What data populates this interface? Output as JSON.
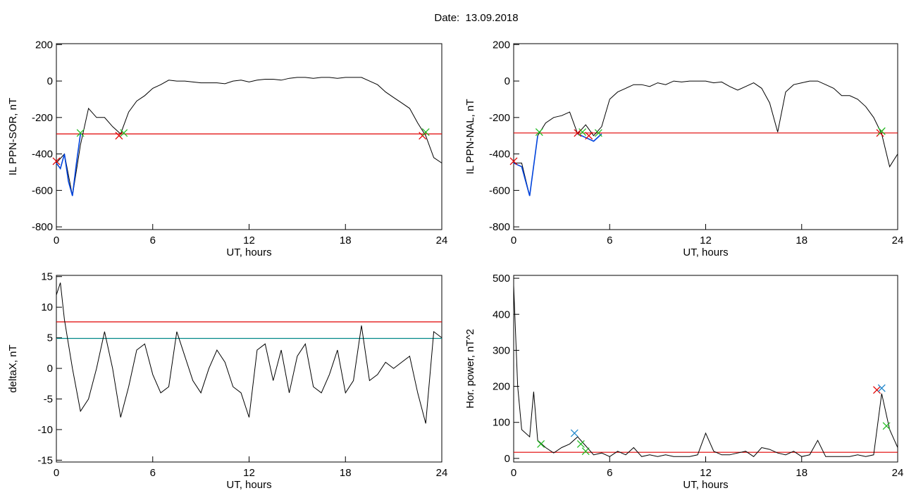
{
  "title": "Date:  13.09.2018",
  "chart_data": [
    {
      "type": "line",
      "xlabel": "UT, hours",
      "ylabel": "IL PPN-SOR, nT",
      "xlim": [
        0,
        24
      ],
      "xticks": [
        0,
        6,
        12,
        18,
        24
      ],
      "ylim": [
        -815,
        205
      ],
      "yticks": [
        200,
        0,
        -200,
        -400,
        -600,
        -800
      ],
      "series": [
        {
          "color": "#000000",
          "x": [
            0,
            0.5,
            1,
            1.5,
            2,
            2.5,
            3,
            3.5,
            4,
            4.5,
            5,
            5.5,
            6,
            6.5,
            7,
            7.5,
            8,
            8.5,
            9,
            9.5,
            10,
            10.5,
            11,
            11.5,
            12,
            12.5,
            13,
            13.5,
            14,
            14.5,
            15,
            15.5,
            16,
            16.5,
            17,
            17.5,
            18,
            18.5,
            19,
            19.5,
            20,
            20.5,
            21,
            21.5,
            22,
            22.5,
            23,
            23.5,
            24
          ],
          "values": [
            -450,
            -400,
            -630,
            -350,
            -150,
            -200,
            -200,
            -250,
            -290,
            -170,
            -110,
            -80,
            -40,
            -20,
            5,
            0,
            0,
            -5,
            -10,
            -10,
            -10,
            -15,
            0,
            5,
            -5,
            5,
            10,
            10,
            5,
            15,
            20,
            20,
            15,
            20,
            20,
            15,
            20,
            20,
            20,
            0,
            -20,
            -60,
            -90,
            -120,
            -150,
            -230,
            -300,
            -420,
            -450
          ]
        },
        {
          "color": "#0044dd",
          "x": [
            0,
            0.25,
            0.5,
            0.75,
            1,
            1.25,
            1.5
          ],
          "values": [
            -450,
            -480,
            -400,
            -550,
            -630,
            -450,
            -290
          ]
        }
      ],
      "hlines": [
        {
          "value": -290,
          "color": "#e00000"
        }
      ],
      "markers": [
        {
          "color": "#e00000",
          "x": [
            0,
            3.9,
            22.8
          ],
          "values": [
            -440,
            -300,
            -300
          ]
        },
        {
          "color": "#22bb22",
          "x": [
            1.5,
            4.2,
            23
          ],
          "values": [
            -285,
            -285,
            -280
          ]
        }
      ]
    },
    {
      "type": "line",
      "xlabel": "UT, hours",
      "ylabel": "IL PPN-NAL, nT",
      "xlim": [
        0,
        24
      ],
      "xticks": [
        0,
        6,
        12,
        18,
        24
      ],
      "ylim": [
        -815,
        205
      ],
      "yticks": [
        200,
        0,
        -200,
        -400,
        -600,
        -800
      ],
      "series": [
        {
          "color": "#000000",
          "x": [
            0,
            0.5,
            1,
            1.5,
            2,
            2.5,
            3,
            3.5,
            4,
            4.5,
            5,
            5.5,
            6,
            6.5,
            7,
            7.5,
            8,
            8.5,
            9,
            9.5,
            10,
            10.5,
            11,
            11.5,
            12,
            12.5,
            13,
            13.5,
            14,
            14.5,
            15,
            15.5,
            16,
            16.5,
            17,
            17.5,
            18,
            18.5,
            19,
            19.5,
            20,
            20.5,
            21,
            21.5,
            22,
            22.5,
            23,
            23.5,
            24
          ],
          "values": [
            -450,
            -450,
            -630,
            -300,
            -230,
            -200,
            -190,
            -170,
            -290,
            -240,
            -300,
            -250,
            -100,
            -60,
            -40,
            -20,
            -20,
            -30,
            -10,
            -20,
            0,
            -5,
            0,
            0,
            0,
            -10,
            -5,
            -30,
            -50,
            -30,
            -10,
            -40,
            -120,
            -280,
            -60,
            -20,
            -10,
            0,
            0,
            -20,
            -40,
            -80,
            -80,
            -100,
            -140,
            -200,
            -290,
            -470,
            -400
          ]
        },
        {
          "color": "#0044dd",
          "x": [
            0,
            0.5,
            1,
            1.5
          ],
          "values": [
            -450,
            -470,
            -630,
            -300
          ]
        },
        {
          "color": "#0044dd",
          "x": [
            4,
            4.5,
            5,
            5.5
          ],
          "values": [
            -290,
            -310,
            -330,
            -290
          ]
        }
      ],
      "hlines": [
        {
          "value": -285,
          "color": "#e00000"
        }
      ],
      "markers": [
        {
          "color": "#e00000",
          "x": [
            0,
            4,
            4.7,
            22.9
          ],
          "values": [
            -440,
            -285,
            -300,
            -285
          ]
        },
        {
          "color": "#22bb22",
          "x": [
            1.6,
            4.3,
            5.3,
            23
          ],
          "values": [
            -280,
            -280,
            -285,
            -275
          ]
        }
      ]
    },
    {
      "type": "line",
      "xlabel": "UT, hours",
      "ylabel": "deltaX, nT",
      "xlim": [
        0,
        24
      ],
      "xticks": [
        0,
        6,
        12,
        18,
        24
      ],
      "ylim": [
        -15.3,
        15.2
      ],
      "yticks": [
        15,
        10,
        5,
        0,
        -5,
        -10,
        -15
      ],
      "series": [
        {
          "color": "#000000",
          "x": [
            0,
            0.25,
            0.5,
            1,
            1.5,
            2,
            2.5,
            3,
            3.5,
            4,
            4.5,
            5,
            5.5,
            6,
            6.5,
            7,
            7.5,
            8,
            8.5,
            9,
            9.5,
            10,
            10.5,
            11,
            11.5,
            12,
            12.5,
            13,
            13.5,
            14,
            14.5,
            15,
            15.5,
            16,
            16.5,
            17,
            17.5,
            18,
            18.5,
            19,
            19.5,
            20,
            20.5,
            21,
            21.5,
            22,
            22.5,
            23,
            23.5,
            24
          ],
          "values": [
            12,
            14,
            8,
            0,
            -7,
            -5,
            0,
            6,
            0,
            -8,
            -3,
            3,
            4,
            -1,
            -4,
            -3,
            6,
            2,
            -2,
            -4,
            0,
            3,
            1,
            -3,
            -4,
            -8,
            3,
            4,
            -2,
            3,
            -4,
            2,
            4,
            -3,
            -4,
            -1,
            3,
            -4,
            -2,
            7,
            -2,
            -1,
            1,
            0,
            1,
            2,
            -4,
            -9,
            6,
            5
          ]
        }
      ],
      "hlines": [
        {
          "value": 7.6,
          "color": "#e00000"
        },
        {
          "value": 4.9,
          "color": "#008888"
        }
      ],
      "markers": []
    },
    {
      "type": "line",
      "xlabel": "UT, hours",
      "ylabel": "Hor. power, nT^2",
      "xlim": [
        0,
        24
      ],
      "xticks": [
        0,
        6,
        12,
        18,
        24
      ],
      "ylim": [
        -10,
        508
      ],
      "yticks": [
        500,
        400,
        300,
        200,
        100,
        0
      ],
      "series": [
        {
          "color": "#000000",
          "x": [
            0,
            0.25,
            0.5,
            1,
            1.25,
            1.5,
            2,
            2.5,
            3,
            3.5,
            4,
            4.5,
            5,
            5.5,
            6,
            6.5,
            7,
            7.5,
            8,
            8.5,
            9,
            9.5,
            10,
            10.5,
            11,
            11.5,
            12,
            12.5,
            13,
            13.5,
            14,
            14.5,
            15,
            15.5,
            16,
            16.5,
            17,
            17.5,
            18,
            18.5,
            19,
            19.5,
            20,
            20.5,
            21,
            21.5,
            22,
            22.5,
            23,
            23.5,
            24
          ],
          "values": [
            480,
            200,
            80,
            60,
            185,
            50,
            30,
            15,
            30,
            40,
            60,
            35,
            10,
            15,
            5,
            20,
            10,
            30,
            5,
            10,
            5,
            10,
            5,
            5,
            5,
            10,
            70,
            20,
            10,
            10,
            15,
            20,
            5,
            30,
            25,
            15,
            10,
            20,
            5,
            10,
            50,
            5,
            5,
            5,
            5,
            10,
            5,
            10,
            180,
            80,
            30
          ]
        }
      ],
      "hlines": [
        {
          "value": 17,
          "color": "#e00000"
        }
      ],
      "markers": [
        {
          "color": "#e00000",
          "x": [
            22.7
          ],
          "values": [
            190
          ]
        },
        {
          "color": "#2288cc",
          "x": [
            3.8,
            23
          ],
          "values": [
            70,
            195
          ]
        },
        {
          "color": "#22bb22",
          "x": [
            1.7,
            4.2,
            4.5,
            23.3
          ],
          "values": [
            40,
            40,
            20,
            90
          ]
        }
      ]
    }
  ]
}
